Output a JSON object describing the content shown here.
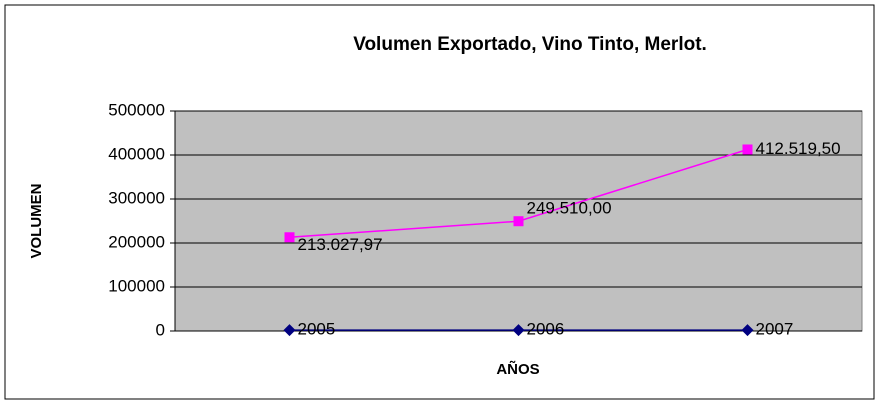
{
  "chart_data": {
    "type": "line",
    "title": "Volumen Exportado, Vino Tinto, Merlot.",
    "x_label": "AÑOS",
    "y_label": "VOLUMEN",
    "categories": [
      null,
      null,
      null
    ],
    "series": [
      {
        "color": "#ff00ff",
        "marker": "square",
        "values": [
          213027.97,
          249510.0,
          412519.5
        ],
        "value_labels": [
          "213.027,97",
          "249.510,00",
          "412.519,50"
        ]
      },
      {
        "color": "#000080",
        "marker": "diamond",
        "values": [
          2005,
          2006,
          2007
        ]
      }
    ],
    "ylim": [
      0,
      500000
    ],
    "yticks": [
      0,
      100000,
      200000,
      300000,
      400000,
      500000
    ],
    "grid": true,
    "plot_background": "#c0c0c0"
  }
}
